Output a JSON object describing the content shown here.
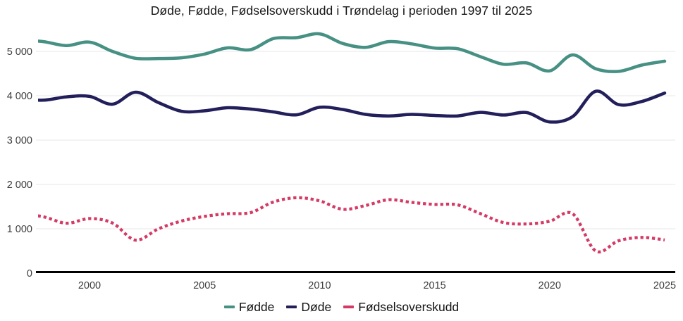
{
  "chart_data": {
    "type": "line",
    "title": "Døde, Fødde, Fødselsoverskudd i Trøndelag i perioden 1997 til 2025",
    "xlabel": "",
    "ylabel": "",
    "x": [
      1997,
      1998,
      1999,
      2000,
      2001,
      2002,
      2003,
      2004,
      2005,
      2006,
      2007,
      2008,
      2009,
      2010,
      2011,
      2012,
      2013,
      2014,
      2015,
      2016,
      2017,
      2018,
      2019,
      2020,
      2021,
      2022,
      2023,
      2024,
      2025
    ],
    "series": [
      {
        "name": "Fødde",
        "color": "#469084",
        "style": "solid",
        "values": [
          5260,
          5220,
          5130,
          5210,
          5000,
          4845,
          4840,
          4855,
          4940,
          5080,
          5040,
          5290,
          5310,
          5395,
          5180,
          5090,
          5220,
          5170,
          5075,
          5060,
          4880,
          4710,
          4740,
          4560,
          4920,
          4610,
          4550,
          4690,
          4780
        ]
      },
      {
        "name": "Døde",
        "color": "#221f5b",
        "style": "solid",
        "values": [
          3930,
          3900,
          3975,
          3985,
          3810,
          4080,
          3845,
          3650,
          3660,
          3730,
          3700,
          3635,
          3570,
          3740,
          3690,
          3580,
          3545,
          3580,
          3555,
          3545,
          3625,
          3565,
          3620,
          3410,
          3530,
          4100,
          3800,
          3870,
          4060
        ]
      },
      {
        "name": "Fødselsoverskudd",
        "color": "#d43a65",
        "style": "dotted",
        "values": [
          1330,
          1270,
          1125,
          1230,
          1130,
          745,
          1000,
          1175,
          1280,
          1340,
          1365,
          1605,
          1700,
          1630,
          1440,
          1525,
          1655,
          1595,
          1550,
          1540,
          1340,
          1140,
          1110,
          1170,
          1340,
          500,
          730,
          805,
          750
        ]
      }
    ],
    "ylim": [
      0,
      5500
    ],
    "yticks": [
      0,
      1000,
      2000,
      3000,
      4000,
      5000
    ],
    "ytick_labels": [
      "0",
      "1 000",
      "2 000",
      "3 000",
      "4 000",
      "5 000"
    ],
    "xticks": [
      2000,
      2005,
      2010,
      2015,
      2020,
      2025
    ],
    "xtick_labels": [
      "2000",
      "2005",
      "2010",
      "2015",
      "2020",
      "2025"
    ],
    "grid": true,
    "legend_position": "bottom"
  },
  "colors": {
    "grid": "#e7e7e7",
    "axis": "#000000",
    "tick_label": "#3c3c3c",
    "title": "#141414"
  }
}
